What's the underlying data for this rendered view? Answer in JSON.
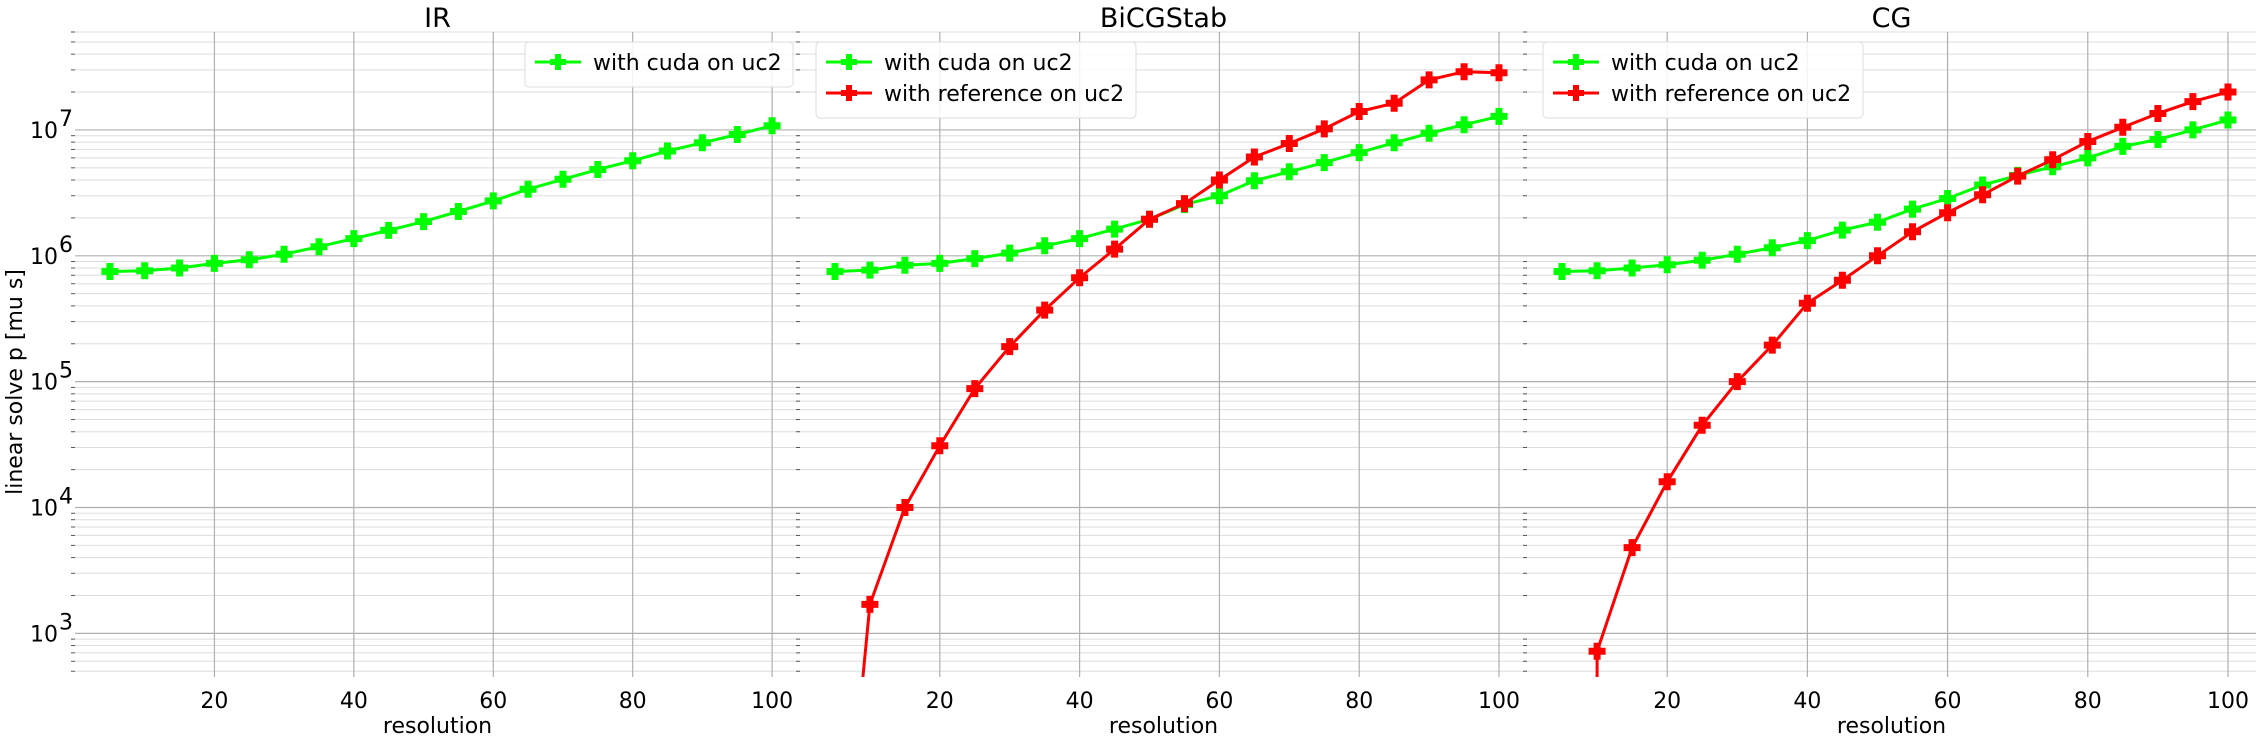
{
  "figure": {
    "ylabel": "linear solve p [mu s]"
  },
  "chart_data": [
    {
      "type": "line",
      "title": "IR",
      "xlabel": "resolution",
      "ylabel": "linear solve p [mu s]",
      "yscale": "log",
      "xlim": [
        0,
        104
      ],
      "ylim": [
        450,
        60000000
      ],
      "xticks": [
        20,
        40,
        60,
        80,
        100
      ],
      "xtick_labels": [
        "20",
        "40",
        "60",
        "80",
        "100"
      ],
      "yticks": [
        1000,
        10000,
        100000,
        1000000,
        10000000
      ],
      "ytick_labels": [
        "10",
        "10",
        "10",
        "10",
        "10"
      ],
      "ytick_exponents": [
        "3",
        "4",
        "5",
        "6",
        "7"
      ],
      "grid": true,
      "legend": "top-right",
      "series": [
        {
          "name": "with cuda on uc2",
          "color": "#00ff00",
          "x": [
            5,
            10,
            15,
            20,
            25,
            30,
            35,
            40,
            45,
            50,
            55,
            60,
            65,
            70,
            75,
            80,
            85,
            90,
            95,
            100
          ],
          "y": [
            750000,
            760000,
            800000,
            870000,
            930000,
            1030000,
            1180000,
            1370000,
            1590000,
            1870000,
            2250000,
            2730000,
            3380000,
            4050000,
            4850000,
            5700000,
            6800000,
            7900000,
            9200000,
            10800000
          ]
        }
      ]
    },
    {
      "type": "line",
      "title": "BiCGStab",
      "xlabel": "resolution",
      "yscale": "log",
      "xlim": [
        0,
        104
      ],
      "ylim": [
        450,
        60000000
      ],
      "xticks": [
        20,
        40,
        60,
        80,
        100
      ],
      "xtick_labels": [
        "20",
        "40",
        "60",
        "80",
        "100"
      ],
      "grid": true,
      "legend": "top-left",
      "series": [
        {
          "name": "with cuda on uc2",
          "color": "#00ff00",
          "x": [
            5,
            10,
            15,
            20,
            25,
            30,
            35,
            40,
            45,
            50,
            55,
            60,
            65,
            70,
            75,
            80,
            85,
            90,
            95,
            100
          ],
          "y": [
            750000,
            770000,
            840000,
            870000,
            950000,
            1050000,
            1200000,
            1370000,
            1630000,
            1950000,
            2550000,
            3000000,
            3950000,
            4650000,
            5500000,
            6600000,
            7900000,
            9400000,
            11000000,
            12800000
          ]
        },
        {
          "name": "with reference on uc2",
          "color": "#ff0000",
          "x": [
            9,
            10,
            15,
            20,
            25,
            30,
            35,
            40,
            45,
            50,
            55,
            60,
            65,
            70,
            75,
            80,
            85,
            90,
            95,
            100
          ],
          "y": [
            450,
            1700,
            10000,
            31000,
            88000,
            190000,
            370000,
            670000,
            1130000,
            1950000,
            2600000,
            4000000,
            6100000,
            7800000,
            10200000,
            14000000,
            16300000,
            25000000,
            29000000,
            28500000
          ]
        }
      ]
    },
    {
      "type": "line",
      "title": "CG",
      "xlabel": "resolution",
      "yscale": "log",
      "xlim": [
        0,
        104
      ],
      "ylim": [
        450,
        60000000
      ],
      "xticks": [
        20,
        40,
        60,
        80,
        100
      ],
      "xtick_labels": [
        "20",
        "40",
        "60",
        "80",
        "100"
      ],
      "grid": true,
      "legend": "top-left",
      "series": [
        {
          "name": "with cuda on uc2",
          "color": "#00ff00",
          "x": [
            5,
            10,
            15,
            20,
            25,
            30,
            35,
            40,
            45,
            50,
            55,
            60,
            65,
            70,
            75,
            80,
            85,
            90,
            95,
            100
          ],
          "y": [
            750000,
            760000,
            800000,
            850000,
            920000,
            1030000,
            1160000,
            1320000,
            1600000,
            1850000,
            2350000,
            2850000,
            3650000,
            4350000,
            5100000,
            6000000,
            7400000,
            8400000,
            10000000,
            12000000
          ]
        },
        {
          "name": "with reference on uc2",
          "color": "#ff0000",
          "x": [
            10,
            10,
            15,
            20,
            25,
            30,
            35,
            40,
            45,
            50,
            55,
            60,
            65,
            70,
            75,
            80,
            85,
            90,
            95,
            100
          ],
          "y": [
            450,
            720,
            4800,
            16000,
            45000,
            100000,
            195000,
            420000,
            640000,
            1000000,
            1550000,
            2200000,
            3050000,
            4300000,
            5800000,
            8100000,
            10500000,
            13500000,
            16800000,
            20000000
          ]
        }
      ]
    }
  ]
}
